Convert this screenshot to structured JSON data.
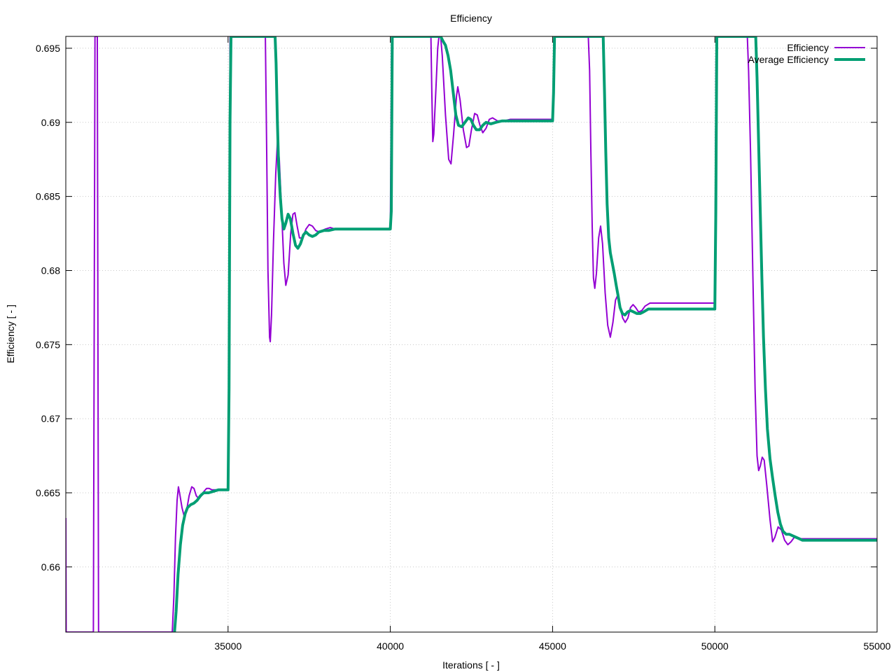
{
  "chart_data": {
    "type": "line",
    "title": "Efficiency",
    "xlabel": "Iterations [ - ]",
    "ylabel": "Efficiency [ - ]",
    "xlim": [
      30000,
      55000
    ],
    "ylim": [
      0.6556,
      0.6958
    ],
    "grid": true,
    "legend_position": "top-right",
    "x_ticks": [
      35000,
      40000,
      45000,
      50000,
      55000
    ],
    "x_tick_labels": [
      "35000",
      "40000",
      "45000",
      "50000",
      "55000"
    ],
    "y_ticks": [
      0.66,
      0.665,
      0.67,
      0.675,
      0.68,
      0.685,
      0.69,
      0.695
    ],
    "y_tick_labels": [
      "0.66",
      "0.665",
      "0.67",
      "0.675",
      "0.68",
      "0.685",
      "0.69",
      "0.695"
    ],
    "series": [
      {
        "name": "Efficiency",
        "color": "#9400d3",
        "line_width": 2,
        "points": [
          [
            30000,
            0.6633
          ],
          [
            30010,
            0.6556
          ],
          [
            30850,
            0.6556
          ],
          [
            30900,
            0.6958
          ],
          [
            30970,
            0.6958
          ],
          [
            31010,
            0.6556
          ],
          [
            33280,
            0.6556
          ],
          [
            33330,
            0.658
          ],
          [
            33380,
            0.662
          ],
          [
            33430,
            0.6645
          ],
          [
            33470,
            0.6654
          ],
          [
            33520,
            0.6648
          ],
          [
            33580,
            0.664
          ],
          [
            33650,
            0.6634
          ],
          [
            33720,
            0.6638
          ],
          [
            33800,
            0.6648
          ],
          [
            33880,
            0.6654
          ],
          [
            33950,
            0.6653
          ],
          [
            34020,
            0.6648
          ],
          [
            34100,
            0.6646
          ],
          [
            34180,
            0.6648
          ],
          [
            34260,
            0.6651
          ],
          [
            34340,
            0.6653
          ],
          [
            34420,
            0.6653
          ],
          [
            34500,
            0.6652
          ],
          [
            34600,
            0.6652
          ],
          [
            35000,
            0.6652
          ],
          [
            35030,
            0.675
          ],
          [
            35060,
            0.6958
          ],
          [
            36150,
            0.6958
          ],
          [
            36190,
            0.688
          ],
          [
            36230,
            0.68
          ],
          [
            36280,
            0.6755
          ],
          [
            36300,
            0.6752
          ],
          [
            36340,
            0.677
          ],
          [
            36400,
            0.682
          ],
          [
            36470,
            0.6865
          ],
          [
            36520,
            0.6887
          ],
          [
            36580,
            0.6875
          ],
          [
            36650,
            0.684
          ],
          [
            36720,
            0.6805
          ],
          [
            36780,
            0.679
          ],
          [
            36850,
            0.6797
          ],
          [
            36930,
            0.6825
          ],
          [
            37000,
            0.6838
          ],
          [
            37060,
            0.6839
          ],
          [
            37130,
            0.683
          ],
          [
            37200,
            0.6822
          ],
          [
            37300,
            0.6822
          ],
          [
            37400,
            0.6828
          ],
          [
            37500,
            0.6831
          ],
          [
            37600,
            0.683
          ],
          [
            37700,
            0.6827
          ],
          [
            37800,
            0.6826
          ],
          [
            37900,
            0.6827
          ],
          [
            38000,
            0.6828
          ],
          [
            38150,
            0.6829
          ],
          [
            38300,
            0.6828
          ],
          [
            38500,
            0.6828
          ],
          [
            40000,
            0.6828
          ],
          [
            40040,
            0.6958
          ],
          [
            41250,
            0.6958
          ],
          [
            41280,
            0.692
          ],
          [
            41310,
            0.6887
          ],
          [
            41340,
            0.6892
          ],
          [
            41400,
            0.692
          ],
          [
            41460,
            0.695
          ],
          [
            41500,
            0.6958
          ],
          [
            41550,
            0.6958
          ],
          [
            41600,
            0.6945
          ],
          [
            41700,
            0.6905
          ],
          [
            41800,
            0.6875
          ],
          [
            41870,
            0.6872
          ],
          [
            41950,
            0.6892
          ],
          [
            42040,
            0.6918
          ],
          [
            42080,
            0.6924
          ],
          [
            42150,
            0.6915
          ],
          [
            42250,
            0.6895
          ],
          [
            42350,
            0.6883
          ],
          [
            42420,
            0.6884
          ],
          [
            42500,
            0.6895
          ],
          [
            42600,
            0.6906
          ],
          [
            42680,
            0.6905
          ],
          [
            42760,
            0.6898
          ],
          [
            42850,
            0.6893
          ],
          [
            42950,
            0.6896
          ],
          [
            43050,
            0.6902
          ],
          [
            43150,
            0.6903
          ],
          [
            43300,
            0.6901
          ],
          [
            43500,
            0.6901
          ],
          [
            43700,
            0.6902
          ],
          [
            45000,
            0.6902
          ],
          [
            45050,
            0.6958
          ],
          [
            46100,
            0.6958
          ],
          [
            46140,
            0.6935
          ],
          [
            46180,
            0.688
          ],
          [
            46220,
            0.683
          ],
          [
            46260,
            0.6795
          ],
          [
            46300,
            0.6788
          ],
          [
            46350,
            0.6798
          ],
          [
            46420,
            0.6822
          ],
          [
            46480,
            0.683
          ],
          [
            46540,
            0.6818
          ],
          [
            46620,
            0.6785
          ],
          [
            46700,
            0.6763
          ],
          [
            46780,
            0.6755
          ],
          [
            46860,
            0.6765
          ],
          [
            46940,
            0.678
          ],
          [
            47000,
            0.6783
          ],
          [
            47080,
            0.6776
          ],
          [
            47160,
            0.6768
          ],
          [
            47240,
            0.6765
          ],
          [
            47320,
            0.6768
          ],
          [
            47400,
            0.6775
          ],
          [
            47480,
            0.6777
          ],
          [
            47560,
            0.6775
          ],
          [
            47650,
            0.6772
          ],
          [
            47750,
            0.6773
          ],
          [
            47850,
            0.6776
          ],
          [
            48000,
            0.6778
          ],
          [
            50000,
            0.6778
          ],
          [
            50040,
            0.6958
          ],
          [
            51000,
            0.6958
          ],
          [
            51040,
            0.6935
          ],
          [
            51100,
            0.688
          ],
          [
            51170,
            0.68
          ],
          [
            51240,
            0.672
          ],
          [
            51300,
            0.6675
          ],
          [
            51350,
            0.6665
          ],
          [
            51400,
            0.6668
          ],
          [
            51460,
            0.6674
          ],
          [
            51520,
            0.6672
          ],
          [
            51600,
            0.6655
          ],
          [
            51700,
            0.6632
          ],
          [
            51780,
            0.6617
          ],
          [
            51850,
            0.662
          ],
          [
            51950,
            0.6627
          ],
          [
            52050,
            0.6625
          ],
          [
            52150,
            0.6618
          ],
          [
            52250,
            0.6615
          ],
          [
            52350,
            0.6617
          ],
          [
            52450,
            0.662
          ],
          [
            52550,
            0.662
          ],
          [
            52650,
            0.6619
          ],
          [
            52800,
            0.6619
          ],
          [
            53000,
            0.6619
          ],
          [
            55000,
            0.6619
          ]
        ]
      },
      {
        "name": "Average Efficiency",
        "color": "#009e73",
        "line_width": 4,
        "points": [
          [
            33350,
            0.6556
          ],
          [
            33400,
            0.657
          ],
          [
            33460,
            0.6595
          ],
          [
            33530,
            0.6615
          ],
          [
            33600,
            0.6628
          ],
          [
            33680,
            0.6636
          ],
          [
            33750,
            0.664
          ],
          [
            33850,
            0.6642
          ],
          [
            33950,
            0.6643
          ],
          [
            34050,
            0.6645
          ],
          [
            34150,
            0.6648
          ],
          [
            34250,
            0.665
          ],
          [
            34400,
            0.665
          ],
          [
            34550,
            0.6651
          ],
          [
            34700,
            0.6652
          ],
          [
            35000,
            0.6652
          ],
          [
            35030,
            0.672
          ],
          [
            35060,
            0.69
          ],
          [
            35090,
            0.6958
          ],
          [
            36450,
            0.6958
          ],
          [
            36480,
            0.694
          ],
          [
            36520,
            0.69
          ],
          [
            36560,
            0.687
          ],
          [
            36610,
            0.685
          ],
          [
            36660,
            0.6835
          ],
          [
            36720,
            0.6828
          ],
          [
            36780,
            0.6832
          ],
          [
            36850,
            0.6838
          ],
          [
            36920,
            0.6835
          ],
          [
            37000,
            0.6825
          ],
          [
            37080,
            0.6817
          ],
          [
            37150,
            0.6815
          ],
          [
            37230,
            0.6818
          ],
          [
            37320,
            0.6824
          ],
          [
            37400,
            0.6826
          ],
          [
            37500,
            0.6824
          ],
          [
            37600,
            0.6823
          ],
          [
            37700,
            0.6824
          ],
          [
            37800,
            0.6826
          ],
          [
            37950,
            0.6827
          ],
          [
            38100,
            0.6827
          ],
          [
            38300,
            0.6828
          ],
          [
            40000,
            0.6828
          ],
          [
            40030,
            0.684
          ],
          [
            40060,
            0.6958
          ],
          [
            41550,
            0.6958
          ],
          [
            41620,
            0.6955
          ],
          [
            41700,
            0.6952
          ],
          [
            41780,
            0.6945
          ],
          [
            41860,
            0.6935
          ],
          [
            41940,
            0.692
          ],
          [
            42020,
            0.6905
          ],
          [
            42100,
            0.6898
          ],
          [
            42200,
            0.6897
          ],
          [
            42300,
            0.69
          ],
          [
            42400,
            0.6903
          ],
          [
            42480,
            0.6902
          ],
          [
            42560,
            0.6898
          ],
          [
            42650,
            0.6895
          ],
          [
            42750,
            0.6895
          ],
          [
            42850,
            0.6898
          ],
          [
            42950,
            0.69
          ],
          [
            43100,
            0.6899
          ],
          [
            43250,
            0.69
          ],
          [
            43450,
            0.6901
          ],
          [
            43700,
            0.6901
          ],
          [
            45000,
            0.6901
          ],
          [
            45030,
            0.692
          ],
          [
            45060,
            0.6958
          ],
          [
            46560,
            0.6958
          ],
          [
            46600,
            0.692
          ],
          [
            46640,
            0.688
          ],
          [
            46680,
            0.6845
          ],
          [
            46730,
            0.6822
          ],
          [
            46780,
            0.6812
          ],
          [
            46840,
            0.6805
          ],
          [
            46900,
            0.6798
          ],
          [
            46960,
            0.679
          ],
          [
            47020,
            0.6783
          ],
          [
            47080,
            0.6775
          ],
          [
            47150,
            0.6771
          ],
          [
            47230,
            0.677
          ],
          [
            47310,
            0.6772
          ],
          [
            47400,
            0.6773
          ],
          [
            47500,
            0.6772
          ],
          [
            47600,
            0.6771
          ],
          [
            47700,
            0.6771
          ],
          [
            47800,
            0.6772
          ],
          [
            47950,
            0.6774
          ],
          [
            48100,
            0.6774
          ],
          [
            50000,
            0.6774
          ],
          [
            50030,
            0.684
          ],
          [
            50060,
            0.6958
          ],
          [
            51260,
            0.6958
          ],
          [
            51300,
            0.693
          ],
          [
            51350,
            0.6885
          ],
          [
            51400,
            0.684
          ],
          [
            51450,
            0.6795
          ],
          [
            51500,
            0.6755
          ],
          [
            51560,
            0.672
          ],
          [
            51620,
            0.6693
          ],
          [
            51700,
            0.6673
          ],
          [
            51780,
            0.666
          ],
          [
            51860,
            0.6648
          ],
          [
            51940,
            0.6637
          ],
          [
            52020,
            0.6629
          ],
          [
            52100,
            0.6624
          ],
          [
            52200,
            0.6622
          ],
          [
            52300,
            0.6622
          ],
          [
            52400,
            0.6621
          ],
          [
            52500,
            0.662
          ],
          [
            52600,
            0.6619
          ],
          [
            52700,
            0.6618
          ],
          [
            52800,
            0.6618
          ],
          [
            53000,
            0.6618
          ],
          [
            55000,
            0.6618
          ]
        ]
      }
    ]
  }
}
